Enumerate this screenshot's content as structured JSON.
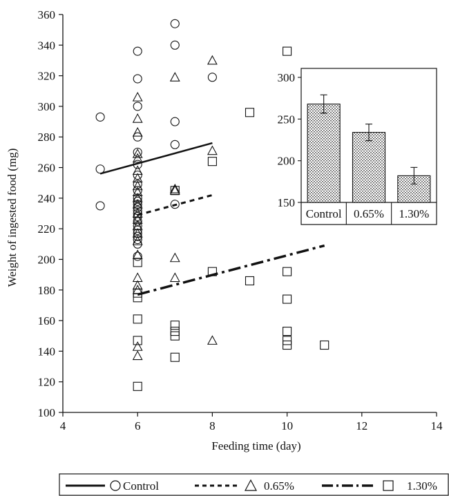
{
  "chart_data": [
    {
      "type": "scatter",
      "title": "",
      "xlabel": "Feeding time (day)",
      "ylabel": "Weight of ingested food (mg)",
      "xlim": [
        4,
        14
      ],
      "ylim": [
        100,
        360
      ],
      "x_ticks": [
        4,
        6,
        8,
        10,
        12,
        14
      ],
      "y_ticks": [
        100,
        120,
        140,
        160,
        180,
        200,
        220,
        240,
        260,
        280,
        300,
        320,
        340,
        360
      ],
      "grid": false,
      "legend_position": "bottom",
      "series": [
        {
          "name": "Control",
          "marker": "circle",
          "line_style": "solid",
          "points": [
            [
              5,
              293
            ],
            [
              5,
              259
            ],
            [
              5,
              235
            ],
            [
              6,
              336
            ],
            [
              6,
              318
            ],
            [
              6,
              300
            ],
            [
              6,
              280
            ],
            [
              6,
              270
            ],
            [
              6,
              262
            ],
            [
              6,
              255
            ],
            [
              6,
              249
            ],
            [
              6,
              245
            ],
            [
              6,
              240
            ],
            [
              6,
              238
            ],
            [
              6,
              236
            ],
            [
              6,
              234
            ],
            [
              6,
              232
            ],
            [
              6,
              230
            ],
            [
              6,
              228
            ],
            [
              6,
              225
            ],
            [
              6,
              222
            ],
            [
              6,
              219
            ],
            [
              6,
              217
            ],
            [
              6,
              215
            ],
            [
              6,
              213
            ],
            [
              6,
              210
            ],
            [
              6,
              202
            ],
            [
              7,
              354
            ],
            [
              7,
              340
            ],
            [
              7,
              290
            ],
            [
              7,
              275
            ],
            [
              7,
              236
            ],
            [
              8,
              319
            ]
          ],
          "trend": {
            "x": [
              5,
              8
            ],
            "y": [
              256,
              276
            ]
          }
        },
        {
          "name": "0.65%",
          "marker": "triangle",
          "line_style": "dashed",
          "points": [
            [
              6,
              306
            ],
            [
              6,
              292
            ],
            [
              6,
              283
            ],
            [
              6,
              269
            ],
            [
              6,
              266
            ],
            [
              6,
              258
            ],
            [
              6,
              253
            ],
            [
              6,
              248
            ],
            [
              6,
              244
            ],
            [
              6,
              240
            ],
            [
              6,
              236
            ],
            [
              6,
              230
            ],
            [
              6,
              226
            ],
            [
              6,
              222
            ],
            [
              6,
              217
            ],
            [
              6,
              212
            ],
            [
              6,
              203
            ],
            [
              6,
              188
            ],
            [
              6,
              183
            ],
            [
              6,
              180
            ],
            [
              6,
              143
            ],
            [
              6,
              137
            ],
            [
              7,
              319
            ],
            [
              7,
              246
            ],
            [
              7,
              245
            ],
            [
              7,
              201
            ],
            [
              7,
              188
            ],
            [
              8,
              330
            ],
            [
              8,
              271
            ],
            [
              8,
              147
            ]
          ],
          "trend": {
            "x": [
              6,
              8
            ],
            "y": [
              229,
              242
            ]
          }
        },
        {
          "name": "1.30%",
          "marker": "square",
          "line_style": "dash-dot",
          "points": [
            [
              6,
              198
            ],
            [
              6,
              178
            ],
            [
              6,
              175
            ],
            [
              6,
              161
            ],
            [
              6,
              147
            ],
            [
              6,
              117
            ],
            [
              7,
              245
            ],
            [
              7,
              157
            ],
            [
              7,
              153
            ],
            [
              7,
              150
            ],
            [
              7,
              136
            ],
            [
              8,
              264
            ],
            [
              8,
              192
            ],
            [
              9,
              296
            ],
            [
              9,
              186
            ],
            [
              10,
              336
            ],
            [
              10,
              192
            ],
            [
              10,
              174
            ],
            [
              10,
              153
            ],
            [
              10,
              147
            ],
            [
              10,
              144
            ],
            [
              11,
              144
            ]
          ],
          "trend": {
            "x": [
              6,
              11
            ],
            "y": [
              177,
              209
            ]
          }
        }
      ]
    },
    {
      "type": "bar",
      "title": "",
      "xlabel": "",
      "ylabel": "",
      "categories": [
        "Control",
        "0.65%",
        "1.30%"
      ],
      "values": [
        268,
        234,
        182
      ],
      "error": [
        11,
        10,
        10
      ],
      "ylim": [
        150,
        300
      ],
      "y_ticks": [
        150,
        200,
        250,
        300
      ],
      "fill": "dotted"
    }
  ],
  "colors": {
    "ink": "#111111",
    "background": "#ffffff",
    "bar_fill": "#c4c4c4"
  }
}
